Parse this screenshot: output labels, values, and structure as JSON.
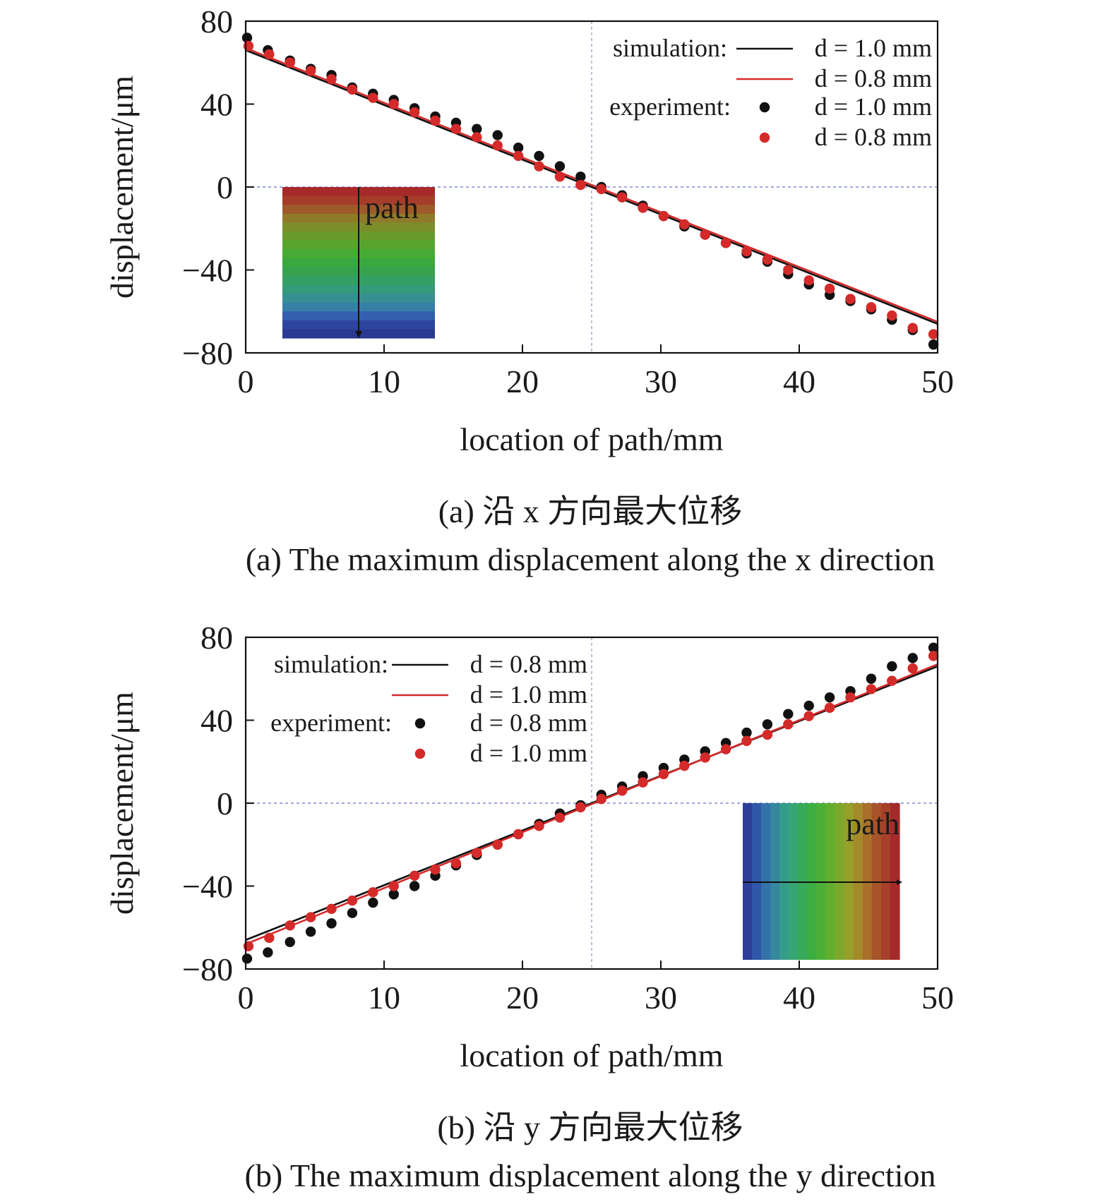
{
  "chart_data": [
    {
      "type": "line",
      "panel": "a",
      "xlabel": "location of path/mm",
      "ylabel": "displacement/μm",
      "xlim": [
        0,
        50
      ],
      "ylim": [
        -80,
        80
      ],
      "xticks": [
        0,
        10,
        20,
        30,
        40,
        50
      ],
      "yticks": [
        80,
        40,
        0,
        -40,
        -80
      ],
      "xtick_labels": [
        "0",
        "10",
        "20",
        "30",
        "40",
        "50"
      ],
      "ytick_labels": [
        "80",
        "40",
        "0",
        "−40",
        "−80"
      ],
      "reference_lines": {
        "x": 25,
        "y": 0
      },
      "legend": {
        "position": "top-right",
        "simulation_label": "simulation:",
        "experiment_label": "experiment:",
        "entries": [
          "d = 1.0 mm",
          "d = 0.8 mm",
          "d = 1.0 mm",
          "d = 0.8 mm"
        ]
      },
      "series": [
        {
          "name": "simulation d = 1.0 mm",
          "kind": "line",
          "color": "#111111",
          "x": [
            0,
            50
          ],
          "y": [
            66,
            -66
          ]
        },
        {
          "name": "simulation d = 0.8 mm",
          "kind": "line",
          "color": "#d42a2a",
          "x": [
            0,
            50
          ],
          "y": [
            67,
            -65
          ]
        },
        {
          "name": "experiment d = 1.0 mm",
          "kind": "scatter",
          "color": "#111111",
          "x": [
            0.1,
            1.6,
            3.2,
            4.7,
            6.2,
            7.7,
            9.2,
            10.7,
            12.2,
            13.7,
            15.2,
            16.7,
            18.2,
            19.7,
            21.2,
            22.7,
            24.2,
            25.7,
            27.2,
            28.7,
            30.2,
            31.7,
            33.2,
            34.7,
            36.2,
            37.7,
            39.2,
            40.7,
            42.2,
            43.7,
            45.2,
            46.7,
            48.2,
            49.7
          ],
          "y": [
            72,
            66,
            61,
            57,
            54,
            48,
            45,
            42,
            38,
            34,
            31,
            28,
            25,
            19,
            15,
            10,
            5,
            0,
            -4,
            -9,
            -14,
            -19,
            -23,
            -27,
            -32,
            -36,
            -42,
            -47,
            -52,
            -55,
            -59,
            -64,
            -69,
            -76
          ]
        },
        {
          "name": "experiment d = 0.8 mm",
          "kind": "scatter",
          "color": "#d42a2a",
          "x": [
            0.2,
            1.7,
            3.2,
            4.7,
            6.2,
            7.7,
            9.2,
            10.7,
            12.2,
            13.7,
            15.2,
            16.7,
            18.2,
            19.7,
            21.2,
            22.7,
            24.2,
            25.7,
            27.2,
            28.7,
            30.2,
            31.7,
            33.2,
            34.7,
            36.2,
            37.7,
            39.2,
            40.7,
            42.2,
            43.7,
            45.2,
            46.7,
            48.2,
            49.7
          ],
          "y": [
            68,
            64,
            60,
            56,
            52,
            47,
            43,
            40,
            36,
            32,
            28,
            24,
            20,
            15,
            10,
            5,
            1,
            -1,
            -5,
            -10,
            -14,
            -18,
            -23,
            -27,
            -31,
            -35,
            -40,
            -45,
            -49,
            -54,
            -58,
            -62,
            -68,
            -71
          ]
        }
      ],
      "inset": {
        "label": "path",
        "colors": [
          "#a52a2a",
          "#a63c2a",
          "#9e5a2a",
          "#8f7a2a",
          "#7b8e2a",
          "#6a9a2a",
          "#58a52e",
          "#46ab34",
          "#3aa83e",
          "#36a24e",
          "#34a064",
          "#349a7a",
          "#368f90",
          "#3680a6",
          "#345fb0",
          "#2e45a0",
          "#2a3a92"
        ]
      },
      "caption_cn": "(a) 沿 x 方向最大位移",
      "caption_en": "(a) The maximum displacement along the x direction"
    },
    {
      "type": "line",
      "panel": "b",
      "xlabel": "location of path/mm",
      "ylabel": "displacement/μm",
      "xlim": [
        0,
        50
      ],
      "ylim": [
        -80,
        80
      ],
      "xticks": [
        0,
        10,
        20,
        30,
        40,
        50
      ],
      "yticks": [
        80,
        40,
        0,
        -40,
        -80
      ],
      "xtick_labels": [
        "0",
        "10",
        "20",
        "30",
        "40",
        "50"
      ],
      "ytick_labels": [
        "80",
        "40",
        "0",
        "−40",
        "−80"
      ],
      "reference_lines": {
        "x": 25,
        "y": 0
      },
      "legend": {
        "position": "top-left",
        "simulation_label": "simulation:",
        "experiment_label": "experiment:",
        "entries": [
          "d = 0.8 mm",
          "d = 1.0 mm",
          "d = 0.8 mm",
          "d = 1.0 mm"
        ]
      },
      "series": [
        {
          "name": "simulation d = 0.8 mm",
          "kind": "line",
          "color": "#111111",
          "x": [
            0,
            50
          ],
          "y": [
            -66,
            66
          ]
        },
        {
          "name": "simulation d = 1.0 mm",
          "kind": "line",
          "color": "#d42a2a",
          "x": [
            0,
            50
          ],
          "y": [
            -68,
            67
          ]
        },
        {
          "name": "experiment d = 0.8 mm",
          "kind": "scatter",
          "color": "#111111",
          "x": [
            0.1,
            1.6,
            3.2,
            4.7,
            6.2,
            7.7,
            9.2,
            10.7,
            12.2,
            13.7,
            15.2,
            16.7,
            18.2,
            19.7,
            21.2,
            22.7,
            24.2,
            25.7,
            27.2,
            28.7,
            30.2,
            31.7,
            33.2,
            34.7,
            36.2,
            37.7,
            39.2,
            40.7,
            42.2,
            43.7,
            45.2,
            46.7,
            48.2,
            49.7
          ],
          "y": [
            -75,
            -72,
            -67,
            -62,
            -58,
            -53,
            -48,
            -44,
            -40,
            -35,
            -30,
            -25,
            -20,
            -15,
            -10,
            -5,
            -1,
            4,
            8,
            13,
            17,
            21,
            25,
            29,
            34,
            38,
            43,
            47,
            51,
            54,
            60,
            66,
            70,
            75
          ]
        },
        {
          "name": "experiment d = 1.0 mm",
          "kind": "scatter",
          "color": "#d42a2a",
          "x": [
            0.2,
            1.7,
            3.2,
            4.7,
            6.2,
            7.7,
            9.2,
            10.7,
            12.2,
            13.7,
            15.2,
            16.7,
            18.2,
            19.7,
            21.2,
            22.7,
            24.2,
            25.7,
            27.2,
            28.7,
            30.2,
            31.7,
            33.2,
            34.7,
            36.2,
            37.7,
            39.2,
            40.7,
            42.2,
            43.7,
            45.2,
            46.7,
            48.2,
            49.7
          ],
          "y": [
            -69,
            -65,
            -59,
            -55,
            -51,
            -47,
            -43,
            -40,
            -35,
            -32,
            -29,
            -24,
            -20,
            -15,
            -11,
            -7,
            -2,
            2,
            6,
            10,
            14,
            18,
            22,
            26,
            30,
            33,
            38,
            42,
            46,
            51,
            55,
            59,
            65,
            71
          ]
        }
      ],
      "inset": {
        "label": "path",
        "colors": [
          "#2e3f9a",
          "#2f56a8",
          "#3373a8",
          "#35889e",
          "#369c8a",
          "#37a674",
          "#38ab5a",
          "#3cae42",
          "#4cb036",
          "#63ae2e",
          "#7ea82c",
          "#96a02a",
          "#a48a2a",
          "#a8702a",
          "#a8542a",
          "#a6402a",
          "#a52a2a"
        ]
      },
      "caption_cn": "(b) 沿 y 方向最大位移",
      "caption_en": "(b) The maximum displacement along the y direction"
    }
  ]
}
